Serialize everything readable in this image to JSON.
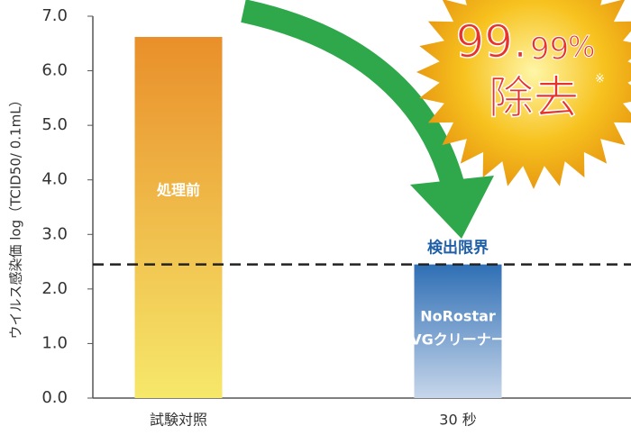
{
  "chart_data": {
    "type": "bar",
    "y_label": "ウイルス感染価 log（TCID50/ 0.1mL）",
    "categories": [
      "試験対照",
      "30 秒"
    ],
    "values": [
      6.62,
      2.45
    ],
    "bar_labels": [
      [
        "処理前"
      ],
      [
        "NoRostar",
        "VGクリーナー"
      ]
    ],
    "colors": [
      [
        "#e98f2a",
        "#f6e86a"
      ],
      [
        "#2f6fb5",
        "#c7d6ea"
      ]
    ],
    "ylim": [
      0,
      7
    ],
    "yticks": [
      {
        "value": 0,
        "label": "0.0"
      },
      {
        "value": 1,
        "label": "1.0"
      },
      {
        "value": 2,
        "label": "2.0"
      },
      {
        "value": 3,
        "label": "3.0"
      },
      {
        "value": 4,
        "label": "4.0"
      },
      {
        "value": 5,
        "label": "5.0"
      },
      {
        "value": 6,
        "label": "6.0"
      },
      {
        "value": 7,
        "label": "7.0"
      }
    ],
    "threshold": {
      "value": 2.45,
      "label": "検出限界"
    },
    "badge": {
      "main": "99.",
      "decimals": "99",
      "unit": "%",
      "text": "除去",
      "note": "※"
    }
  }
}
